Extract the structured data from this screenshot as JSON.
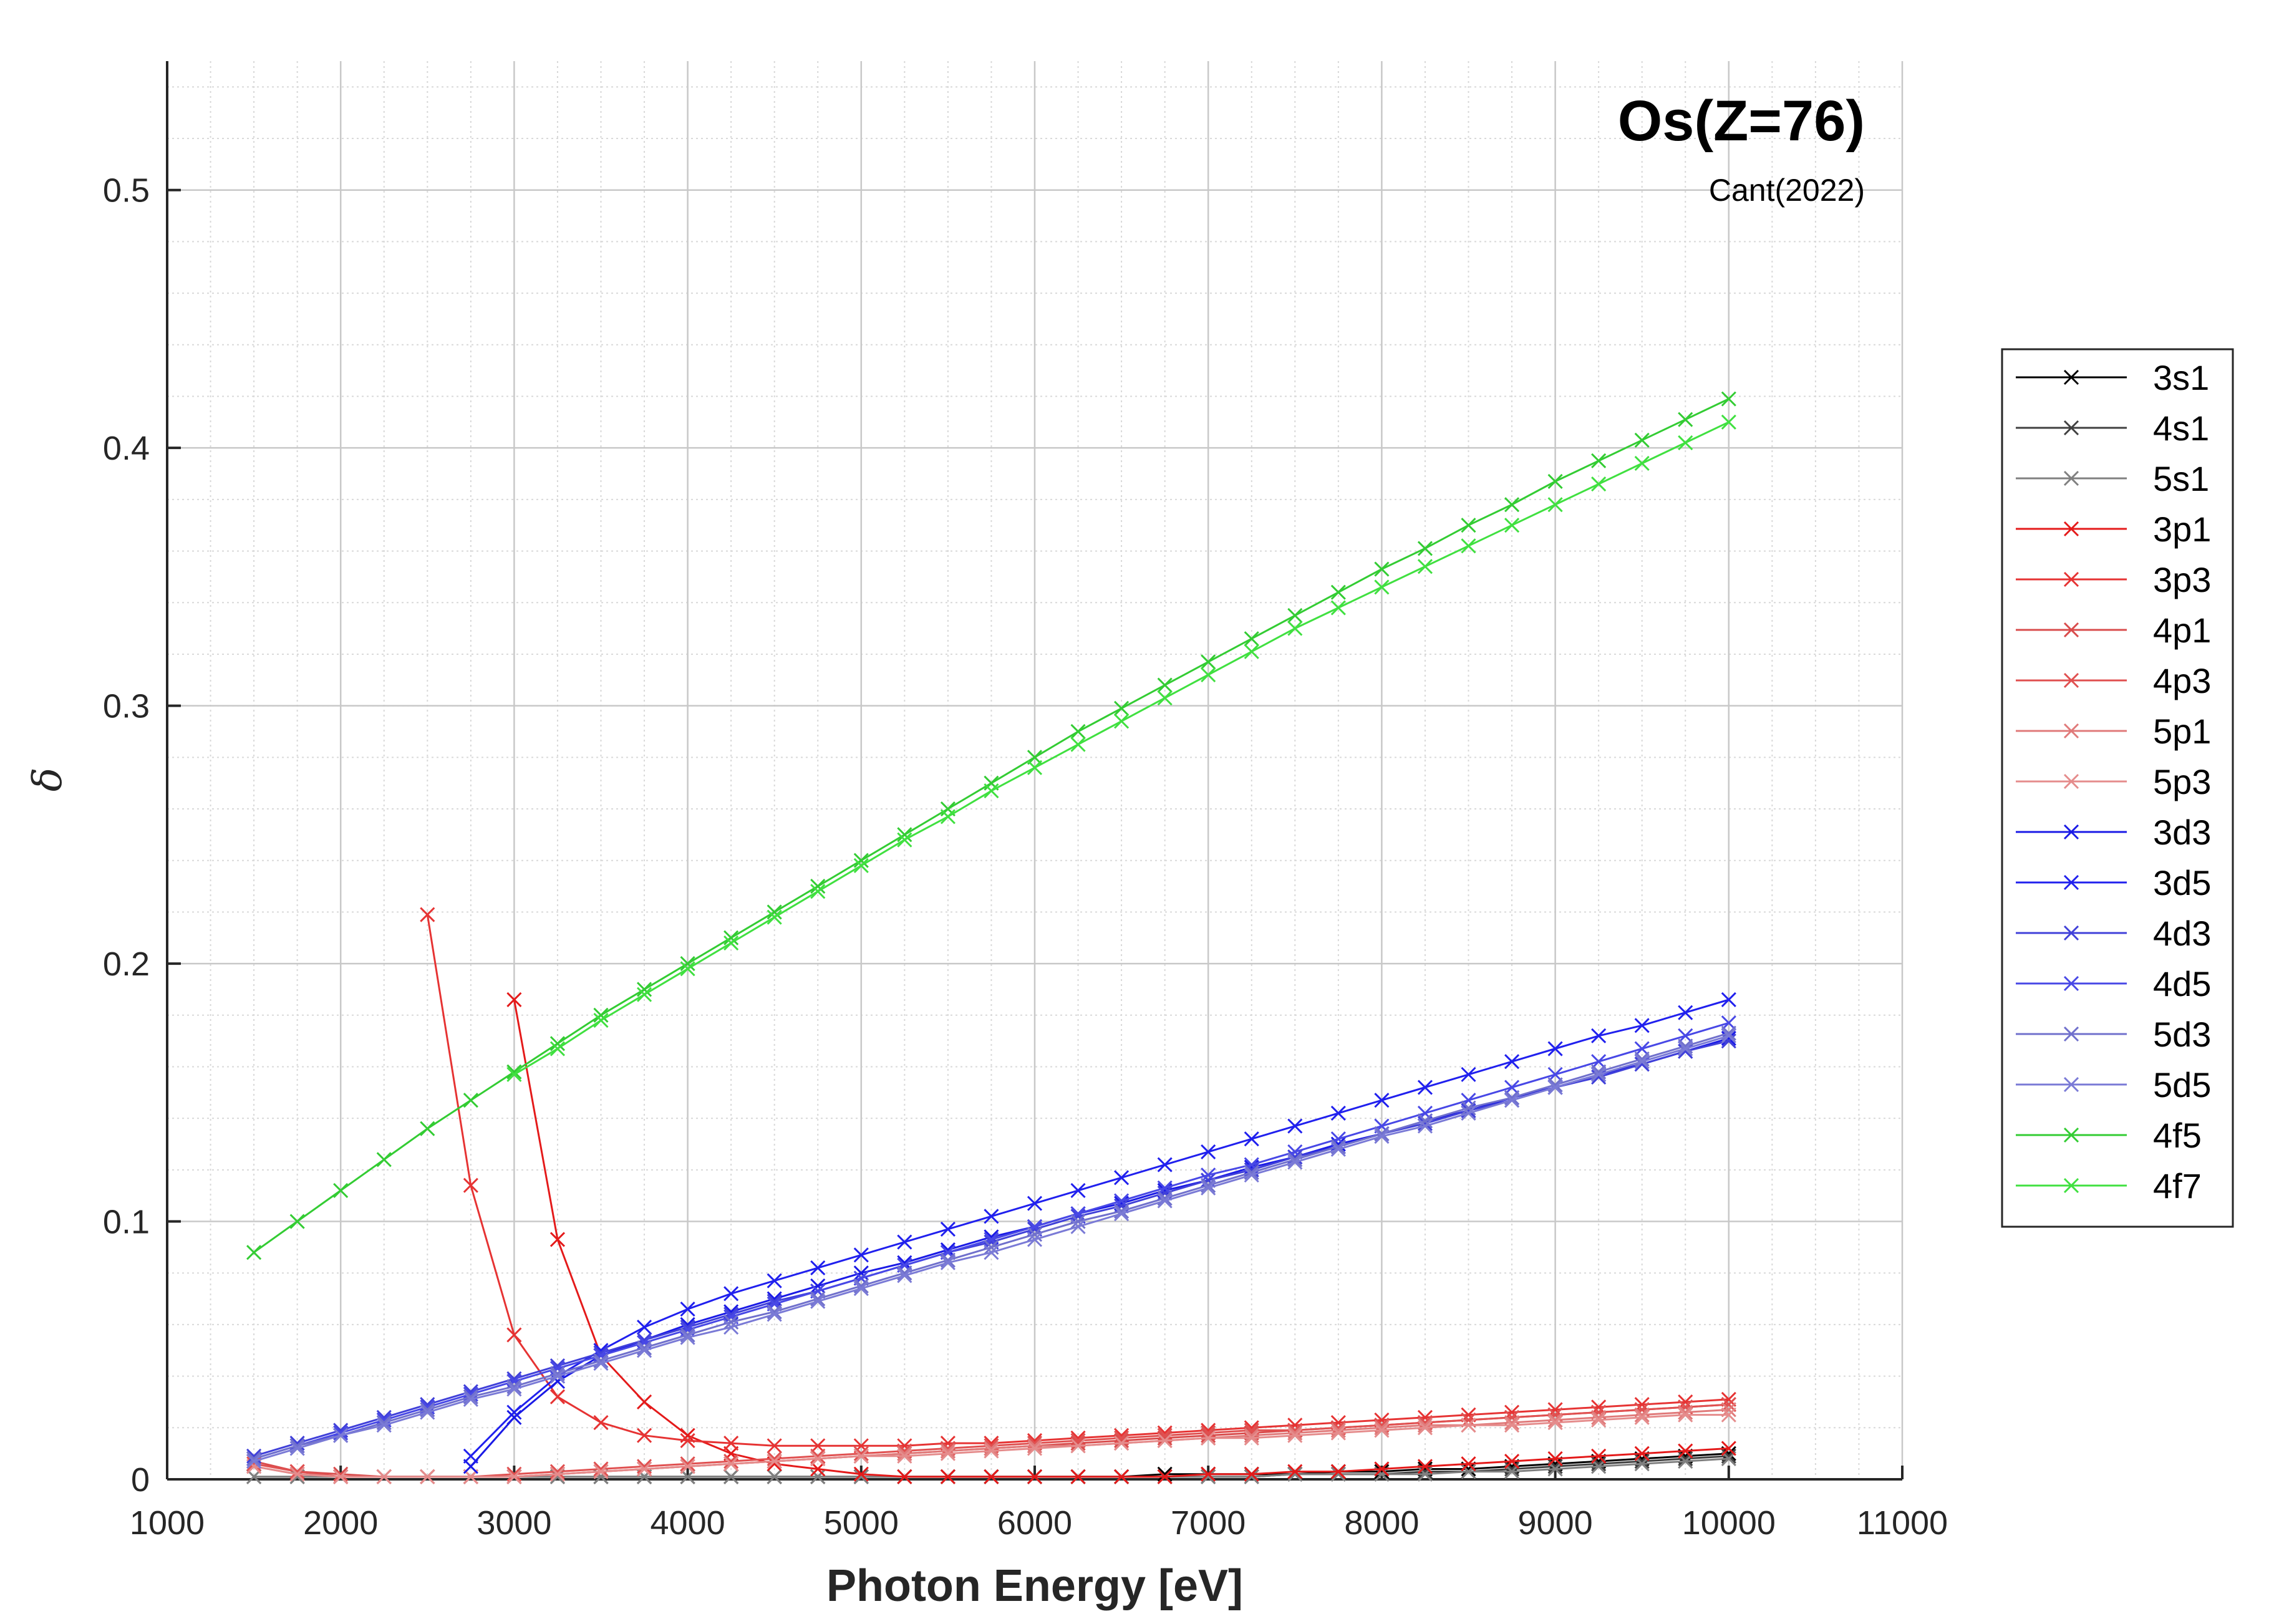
{
  "chart_data": {
    "type": "line",
    "title": "Os(Z=76)",
    "subtitle": "Cant(2022)",
    "xlabel": "Photon Energy [eV]",
    "ylabel": "δ",
    "xlim": [
      1000,
      11000
    ],
    "ylim": [
      0,
      0.55
    ],
    "xticks": [
      1000,
      2000,
      3000,
      4000,
      5000,
      6000,
      7000,
      8000,
      9000,
      10000,
      11000
    ],
    "yticks": [
      0,
      0.1,
      0.2,
      0.3,
      0.4,
      0.5
    ],
    "xtick_labels": [
      "1000",
      "2000",
      "3000",
      "4000",
      "5000",
      "6000",
      "7000",
      "8000",
      "9000",
      "10000",
      "11000"
    ],
    "ytick_labels": [
      "0",
      "0.1",
      "0.2",
      "0.3",
      "0.4",
      "0.5"
    ],
    "grid": true,
    "minor_grid": true,
    "legend_position": "right",
    "x": [
      1500,
      1750,
      2000,
      2250,
      2500,
      2750,
      3000,
      3250,
      3500,
      3750,
      4000,
      4250,
      4500,
      4750,
      5000,
      5250,
      5500,
      5750,
      6000,
      6250,
      6500,
      6750,
      7000,
      7250,
      7500,
      7750,
      8000,
      8250,
      8500,
      8750,
      9000,
      9250,
      9500,
      9750,
      10000
    ],
    "series": [
      {
        "name": "3s1",
        "color": "#000000",
        "values": [
          null,
          null,
          null,
          null,
          null,
          null,
          null,
          null,
          0.001,
          0.001,
          0.001,
          0.001,
          0.001,
          0.001,
          0.001,
          0.001,
          0.001,
          0.001,
          0.001,
          0.001,
          0.001,
          0.002,
          0.002,
          0.002,
          0.002,
          0.003,
          0.003,
          0.004,
          0.004,
          0.005,
          0.006,
          0.007,
          0.008,
          0.009,
          0.01
        ]
      },
      {
        "name": "4s1",
        "color": "#404040",
        "values": [
          0.001,
          0.001,
          0.001,
          0.001,
          0.001,
          0.001,
          0.001,
          0.001,
          0.001,
          0.001,
          0.001,
          0.001,
          0.001,
          0.001,
          0.001,
          0.001,
          0.001,
          0.001,
          0.001,
          0.001,
          0.001,
          0.001,
          0.001,
          0.001,
          0.002,
          0.002,
          0.002,
          0.003,
          0.003,
          0.004,
          0.005,
          0.006,
          0.007,
          0.008,
          0.009
        ]
      },
      {
        "name": "5s1",
        "color": "#808080",
        "values": [
          0.001,
          0.001,
          0.001,
          0.001,
          0.001,
          0.001,
          0.001,
          0.001,
          0.001,
          0.001,
          0.001,
          0.001,
          0.001,
          0.001,
          0.001,
          0.001,
          0.001,
          0.001,
          0.001,
          0.001,
          0.001,
          0.001,
          0.001,
          0.001,
          0.002,
          0.002,
          0.002,
          0.002,
          0.003,
          0.003,
          0.004,
          0.005,
          0.006,
          0.007,
          0.008
        ]
      },
      {
        "name": "3p1",
        "color": "#e41a1a",
        "values": [
          null,
          null,
          null,
          null,
          null,
          null,
          0.186,
          0.093,
          0.048,
          0.03,
          0.017,
          0.01,
          0.006,
          0.004,
          0.002,
          0.001,
          0.001,
          0.001,
          0.001,
          0.001,
          0.001,
          0.001,
          0.002,
          0.002,
          0.003,
          0.003,
          0.004,
          0.005,
          0.006,
          0.007,
          0.008,
          0.009,
          0.01,
          0.011,
          0.012
        ]
      },
      {
        "name": "3p3",
        "color": "#e63333",
        "values": [
          null,
          null,
          null,
          null,
          0.219,
          0.114,
          0.056,
          0.032,
          0.022,
          0.017,
          0.015,
          0.014,
          0.013,
          0.013,
          0.013,
          0.013,
          0.014,
          0.014,
          0.015,
          0.016,
          0.017,
          0.018,
          0.019,
          0.02,
          0.021,
          0.022,
          0.023,
          0.024,
          0.025,
          0.026,
          0.027,
          0.028,
          0.029,
          0.03,
          0.031
        ]
      },
      {
        "name": "4p1",
        "color": "#d94c4c",
        "values": [
          0.007,
          0.003,
          0.002,
          0.001,
          0.001,
          0.001,
          0.001,
          0.002,
          0.003,
          0.004,
          0.005,
          0.006,
          0.007,
          0.008,
          0.009,
          0.01,
          0.011,
          0.012,
          0.013,
          0.014,
          0.015,
          0.016,
          0.017,
          0.018,
          0.019,
          0.02,
          0.021,
          0.022,
          0.023,
          0.024,
          0.025,
          0.026,
          0.027,
          0.028,
          0.029
        ]
      },
      {
        "name": "4p3",
        "color": "#e05050",
        "values": [
          0.006,
          0.003,
          0.001,
          0.001,
          0.001,
          0.001,
          0.002,
          0.003,
          0.004,
          0.005,
          0.006,
          0.007,
          0.008,
          0.009,
          0.01,
          0.011,
          0.012,
          0.013,
          0.014,
          0.015,
          0.016,
          0.017,
          0.018,
          0.019,
          0.019,
          0.02,
          0.021,
          0.022,
          0.023,
          0.024,
          0.025,
          0.026,
          0.027,
          0.028,
          0.029
        ]
      },
      {
        "name": "5p1",
        "color": "#e07a7a",
        "values": [
          0.005,
          0.002,
          0.001,
          0.001,
          0.001,
          0.001,
          0.001,
          0.002,
          0.003,
          0.004,
          0.005,
          0.006,
          0.007,
          0.008,
          0.009,
          0.01,
          0.011,
          0.012,
          0.013,
          0.013,
          0.014,
          0.015,
          0.016,
          0.017,
          0.018,
          0.019,
          0.02,
          0.021,
          0.021,
          0.022,
          0.023,
          0.024,
          0.025,
          0.026,
          0.027
        ]
      },
      {
        "name": "5p3",
        "color": "#e58c8c",
        "values": [
          0.005,
          0.002,
          0.001,
          0.001,
          0.001,
          0.001,
          0.001,
          0.002,
          0.003,
          0.004,
          0.005,
          0.006,
          0.007,
          0.008,
          0.009,
          0.009,
          0.01,
          0.011,
          0.012,
          0.013,
          0.014,
          0.015,
          0.016,
          0.016,
          0.017,
          0.018,
          0.019,
          0.02,
          0.021,
          0.021,
          0.022,
          0.023,
          0.024,
          0.025,
          0.025
        ]
      },
      {
        "name": "3d3",
        "color": "#1a1ae6",
        "values": [
          null,
          null,
          null,
          null,
          null,
          0.005,
          0.024,
          0.038,
          0.048,
          0.054,
          0.06,
          0.065,
          0.07,
          0.075,
          0.08,
          0.084,
          0.089,
          0.094,
          0.098,
          0.103,
          0.107,
          0.112,
          0.116,
          0.121,
          0.125,
          0.13,
          0.134,
          0.139,
          0.143,
          0.148,
          0.152,
          0.157,
          0.161,
          0.166,
          0.171
        ]
      },
      {
        "name": "3d5",
        "color": "#2020ee",
        "values": [
          null,
          null,
          null,
          null,
          null,
          0.009,
          0.026,
          0.04,
          0.05,
          0.059,
          0.066,
          0.072,
          0.077,
          0.082,
          0.087,
          0.092,
          0.097,
          0.102,
          0.107,
          0.112,
          0.117,
          0.122,
          0.127,
          0.132,
          0.137,
          0.142,
          0.147,
          0.152,
          0.157,
          0.162,
          0.167,
          0.172,
          0.176,
          0.181,
          0.186
        ]
      },
      {
        "name": "4d3",
        "color": "#4040d9",
        "values": [
          0.009,
          0.014,
          0.019,
          0.024,
          0.029,
          0.034,
          0.039,
          0.044,
          0.049,
          0.054,
          0.059,
          0.064,
          0.069,
          0.073,
          0.078,
          0.083,
          0.088,
          0.092,
          0.097,
          0.102,
          0.106,
          0.111,
          0.116,
          0.12,
          0.125,
          0.129,
          0.134,
          0.138,
          0.143,
          0.147,
          0.152,
          0.156,
          0.161,
          0.166,
          0.17
        ]
      },
      {
        "name": "4d5",
        "color": "#4848e6",
        "values": [
          0.008,
          0.013,
          0.018,
          0.023,
          0.028,
          0.033,
          0.038,
          0.043,
          0.048,
          0.053,
          0.058,
          0.063,
          0.068,
          0.073,
          0.078,
          0.083,
          0.088,
          0.093,
          0.098,
          0.103,
          0.108,
          0.113,
          0.118,
          0.122,
          0.127,
          0.132,
          0.137,
          0.142,
          0.147,
          0.152,
          0.157,
          0.162,
          0.167,
          0.172,
          0.177
        ]
      },
      {
        "name": "5d3",
        "color": "#7070cc",
        "values": [
          0.008,
          0.013,
          0.017,
          0.022,
          0.027,
          0.032,
          0.036,
          0.041,
          0.046,
          0.051,
          0.056,
          0.061,
          0.065,
          0.07,
          0.075,
          0.08,
          0.085,
          0.09,
          0.095,
          0.1,
          0.104,
          0.109,
          0.114,
          0.119,
          0.124,
          0.129,
          0.134,
          0.139,
          0.144,
          0.148,
          0.153,
          0.158,
          0.163,
          0.168,
          0.173
        ]
      },
      {
        "name": "5d5",
        "color": "#7a7ad6",
        "values": [
          0.007,
          0.012,
          0.017,
          0.021,
          0.026,
          0.031,
          0.035,
          0.04,
          0.045,
          0.05,
          0.055,
          0.059,
          0.064,
          0.069,
          0.074,
          0.079,
          0.084,
          0.088,
          0.093,
          0.098,
          0.103,
          0.108,
          0.113,
          0.118,
          0.123,
          0.128,
          0.133,
          0.137,
          0.142,
          0.147,
          0.152,
          0.157,
          0.162,
          0.167,
          0.172
        ]
      },
      {
        "name": "4f5",
        "color": "#33cc33",
        "values": [
          0.088,
          0.1,
          0.112,
          0.124,
          0.136,
          0.147,
          0.158,
          0.169,
          0.18,
          0.19,
          0.2,
          0.21,
          0.22,
          0.23,
          0.24,
          0.25,
          0.26,
          0.27,
          0.28,
          0.29,
          0.299,
          0.308,
          0.317,
          0.326,
          0.335,
          0.344,
          0.353,
          0.361,
          0.37,
          0.378,
          0.387,
          0.395,
          0.403,
          0.411,
          0.419
        ]
      },
      {
        "name": "4f7",
        "color": "#40e040",
        "values": [
          null,
          null,
          null,
          null,
          null,
          null,
          0.157,
          0.167,
          0.178,
          0.188,
          0.198,
          0.208,
          0.218,
          0.228,
          0.238,
          0.248,
          0.257,
          0.267,
          0.276,
          0.285,
          0.294,
          0.303,
          0.312,
          0.321,
          0.33,
          0.338,
          0.346,
          0.354,
          0.362,
          0.37,
          0.378,
          0.386,
          0.394,
          0.402,
          0.41
        ]
      }
    ]
  }
}
